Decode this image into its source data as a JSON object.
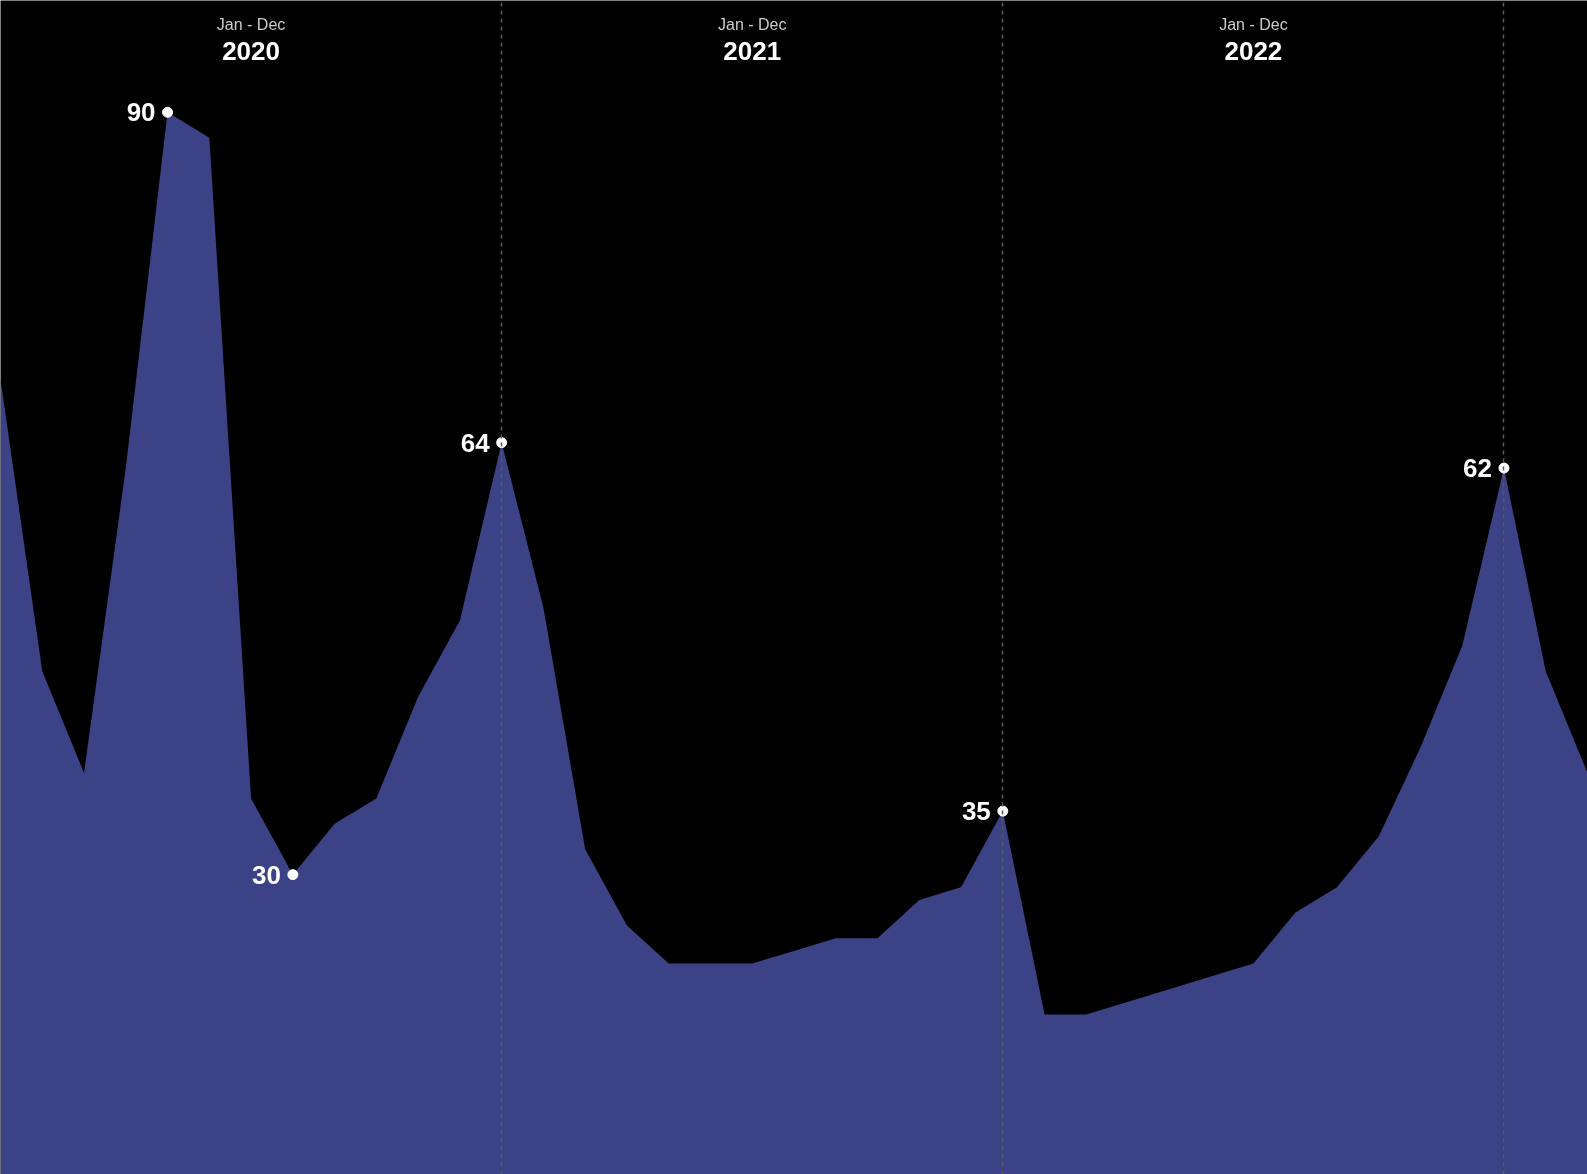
{
  "chart_data": {
    "type": "area",
    "categories": [
      null,
      null,
      null,
      null,
      null,
      null,
      null,
      null,
      null,
      null,
      null,
      null,
      null,
      null,
      null,
      null,
      null,
      null,
      null,
      null,
      null,
      null,
      null,
      null,
      null,
      null,
      null,
      null,
      null,
      null,
      null,
      null,
      null,
      null,
      null,
      null,
      null,
      null,
      null
    ],
    "series": [
      {
        "color": "#3b4386",
        "values": [
          69,
          46,
          38,
          62,
          90,
          88,
          36,
          30,
          34,
          36,
          44,
          50,
          64,
          51,
          32,
          26,
          23,
          23,
          23,
          24,
          25,
          25,
          28,
          29,
          35,
          19,
          19,
          20,
          21,
          22,
          23,
          27,
          29,
          33,
          40,
          48,
          62,
          46,
          38
        ],
        "value_labels": [
          null,
          null,
          null,
          null,
          "90",
          null,
          null,
          "30",
          null,
          null,
          null,
          null,
          "64",
          null,
          null,
          null,
          null,
          null,
          null,
          null,
          null,
          null,
          null,
          null,
          "35",
          null,
          null,
          null,
          null,
          null,
          null,
          null,
          null,
          null,
          null,
          null,
          "62",
          null,
          null
        ]
      }
    ],
    "ylim": [
      6.4,
      98.8
    ],
    "tick_labels": false,
    "grid": "x",
    "annotations": [
      "Jan - Dec",
      "2020",
      "Jan - Dec",
      "2021",
      "Jan - Dec",
      "2022"
    ]
  }
}
